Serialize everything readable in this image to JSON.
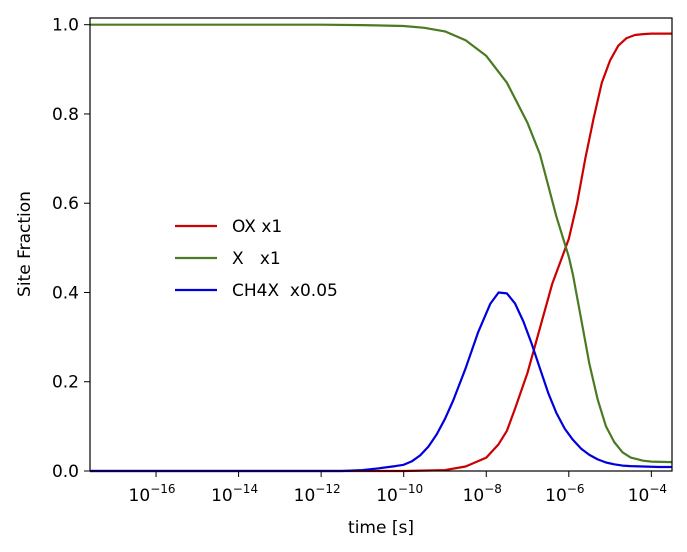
{
  "chart_data": {
    "type": "line",
    "title": "",
    "xlabel": "time [s]",
    "ylabel": "Site Fraction",
    "xscale": "log",
    "xlim": [
      -17.6,
      -3.5
    ],
    "ylim": [
      0,
      1.015
    ],
    "x_ticks": [
      {
        "exp": -16,
        "base": "10",
        "sup": "−16"
      },
      {
        "exp": -14,
        "base": "10",
        "sup": "−14"
      },
      {
        "exp": -12,
        "base": "10",
        "sup": "−12"
      },
      {
        "exp": -10,
        "base": "10",
        "sup": "−10"
      },
      {
        "exp": -8,
        "base": "10",
        "sup": "−8"
      },
      {
        "exp": -6,
        "base": "10",
        "sup": "−6"
      },
      {
        "exp": -4,
        "base": "10",
        "sup": "−4"
      }
    ],
    "y_ticks": [
      {
        "value": 0.0,
        "label": "0.0"
      },
      {
        "value": 0.2,
        "label": "0.2"
      },
      {
        "value": 0.4,
        "label": "0.4"
      },
      {
        "value": 0.6,
        "label": "0.6"
      },
      {
        "value": 0.8,
        "label": "0.8"
      },
      {
        "value": 1.0,
        "label": "1.0"
      }
    ],
    "grid": false,
    "legend_position": "center-left",
    "series": [
      {
        "name": "OX x1",
        "color": "#cc0000",
        "x_log10": [
          -17.6,
          -10,
          -9,
          -8.5,
          -8,
          -7.7,
          -7.5,
          -7.3,
          -7.0,
          -6.7,
          -6.4,
          -6.2,
          -6.0,
          -5.8,
          -5.6,
          -5.4,
          -5.2,
          -5.0,
          -4.8,
          -4.6,
          -4.4,
          -4.2,
          -4.0,
          -3.5
        ],
        "values": [
          0.0,
          0.0,
          0.002,
          0.01,
          0.03,
          0.06,
          0.09,
          0.14,
          0.22,
          0.32,
          0.42,
          0.47,
          0.52,
          0.6,
          0.7,
          0.79,
          0.87,
          0.92,
          0.953,
          0.97,
          0.977,
          0.979,
          0.98,
          0.98
        ]
      },
      {
        "name": "X   x1",
        "color": "#4a7a22",
        "x_log10": [
          -17.6,
          -12,
          -11,
          -10,
          -9.5,
          -9,
          -8.5,
          -8,
          -7.5,
          -7.0,
          -6.7,
          -6.5,
          -6.3,
          -6.1,
          -6.0,
          -5.9,
          -5.7,
          -5.5,
          -5.3,
          -5.1,
          -4.9,
          -4.7,
          -4.5,
          -4.2,
          -4.0,
          -3.5
        ],
        "values": [
          1.0,
          1.0,
          0.999,
          0.997,
          0.993,
          0.985,
          0.965,
          0.93,
          0.87,
          0.78,
          0.71,
          0.64,
          0.57,
          0.51,
          0.48,
          0.44,
          0.34,
          0.24,
          0.16,
          0.1,
          0.065,
          0.042,
          0.03,
          0.023,
          0.021,
          0.02
        ]
      },
      {
        "name": "CH4X  x0.05",
        "color": "#0000dd",
        "x_log10": [
          -17.6,
          -11.5,
          -11,
          -10.6,
          -10.2,
          -10,
          -9.8,
          -9.6,
          -9.4,
          -9.2,
          -9.0,
          -8.8,
          -8.5,
          -8.2,
          -7.9,
          -7.7,
          -7.5,
          -7.3,
          -7.1,
          -6.9,
          -6.7,
          -6.5,
          -6.3,
          -6.1,
          -5.9,
          -5.7,
          -5.5,
          -5.3,
          -5.1,
          -4.9,
          -4.7,
          -4.5,
          -4.2,
          -3.8,
          -3.5
        ],
        "values": [
          0.0,
          0.0,
          0.002,
          0.006,
          0.011,
          0.014,
          0.022,
          0.035,
          0.055,
          0.082,
          0.117,
          0.158,
          0.23,
          0.31,
          0.375,
          0.4,
          0.398,
          0.375,
          0.335,
          0.285,
          0.23,
          0.175,
          0.13,
          0.095,
          0.07,
          0.05,
          0.036,
          0.026,
          0.019,
          0.015,
          0.012,
          0.011,
          0.01,
          0.009,
          0.009
        ]
      }
    ]
  }
}
